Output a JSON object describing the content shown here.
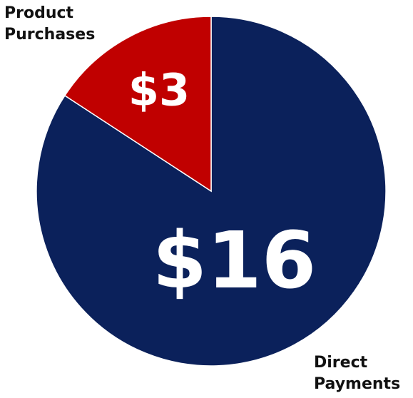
{
  "chart_data": {
    "type": "pie",
    "categories": [
      "Direct Payments",
      "Product Purchases"
    ],
    "values": [
      16,
      3
    ],
    "value_labels": [
      "$16",
      "$3"
    ],
    "colors": [
      "#0b215b",
      "#c00000"
    ]
  }
}
